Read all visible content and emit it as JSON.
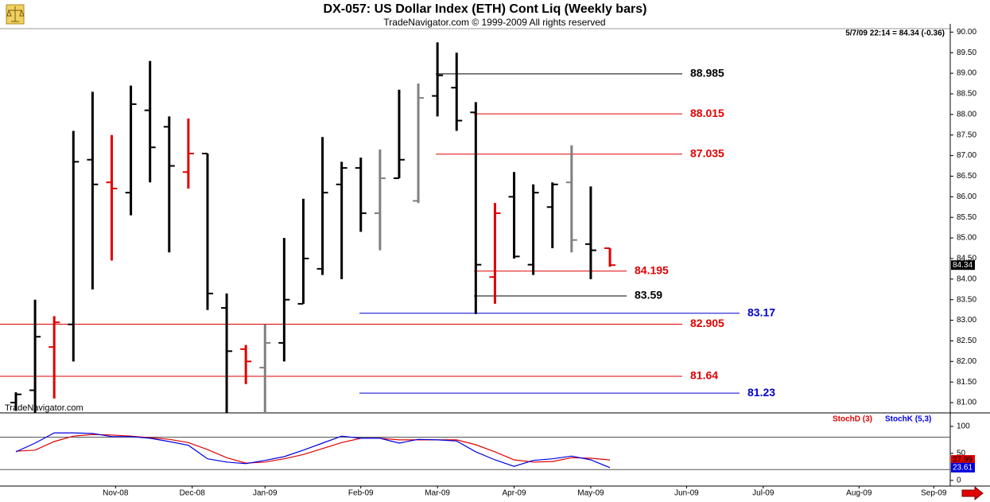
{
  "chart_data": [
    {
      "type": "ohlc",
      "title": "DX-057:  US Dollar Index (ETH) Cont Liq  (Weekly bars)",
      "subtitle": "TradeNavigator.com © 1999-2009 All rights reserved",
      "quote": "5/7/09 22:14 = 84.34 (-0.36)",
      "watermark": "TradeNavigator.com",
      "categories": [
        null,
        null,
        null,
        null,
        null,
        null,
        null,
        null,
        null,
        null,
        null,
        null,
        null,
        null,
        null,
        null,
        null,
        null,
        null,
        null,
        null,
        null,
        null,
        null,
        null,
        null,
        null,
        null,
        null,
        null,
        null,
        null
      ],
      "xlim": [
        -0.83,
        48.76
      ],
      "ylim": [
        80.75,
        90.2
      ],
      "yticks": [
        {
          "value": 81,
          "label": "81.00"
        },
        {
          "value": 81.5,
          "label": "81.50"
        },
        {
          "value": 82,
          "label": "82.00"
        },
        {
          "value": 82.5,
          "label": "82.50"
        },
        {
          "value": 83,
          "label": "83.00"
        },
        {
          "value": 83.5,
          "label": "83.50"
        },
        {
          "value": 84,
          "label": "84.00"
        },
        {
          "value": 84.5,
          "label": "84.50"
        },
        {
          "value": 85,
          "label": "85.00"
        },
        {
          "value": 85.5,
          "label": "85.50"
        },
        {
          "value": 86,
          "label": "86.00"
        },
        {
          "value": 86.5,
          "label": "86.50"
        },
        {
          "value": 87,
          "label": "87.00"
        },
        {
          "value": 87.5,
          "label": "87.50"
        },
        {
          "value": 88,
          "label": "88.00"
        },
        {
          "value": 88.5,
          "label": "88.50"
        },
        {
          "value": 89,
          "label": "89.00"
        },
        {
          "value": 89.5,
          "label": "89.50"
        },
        {
          "value": 90,
          "label": "90.00"
        }
      ],
      "open": [
        81.0,
        81.3,
        82.35,
        82.9,
        86.9,
        86.35,
        86.1,
        88.1,
        87.7,
        86.6,
        87.05,
        83.3,
        82.3,
        81.85,
        82.45,
        83.4,
        84.25,
        86.3,
        86.7,
        85.6,
        86.45,
        85.9,
        88.45,
        88.65,
        88.05,
        84.05,
        86.0,
        84.35,
        85.75,
        86.35,
        84.85,
        84.75
      ],
      "high": [
        81.25,
        83.5,
        83.1,
        87.6,
        88.55,
        87.5,
        88.7,
        89.3,
        87.95,
        87.9,
        87.05,
        83.65,
        82.4,
        82.9,
        85.0,
        85.95,
        87.45,
        86.85,
        86.95,
        87.15,
        88.6,
        88.75,
        89.75,
        89.5,
        88.3,
        85.85,
        86.6,
        86.3,
        86.35,
        87.25,
        86.25,
        84.75
      ],
      "low": [
        80.8,
        80.75,
        81.1,
        82.0,
        83.75,
        84.45,
        85.55,
        86.35,
        84.65,
        86.2,
        83.25,
        80.75,
        81.45,
        80.75,
        82.0,
        83.4,
        84.1,
        84.0,
        85.15,
        84.7,
        86.45,
        85.85,
        87.95,
        87.6,
        83.15,
        83.4,
        84.5,
        84.1,
        84.75,
        84.65,
        84.0,
        84.3
      ],
      "close": [
        81.2,
        82.6,
        82.95,
        86.85,
        86.3,
        86.2,
        88.25,
        87.2,
        86.75,
        87.05,
        83.65,
        82.25,
        82.0,
        82.45,
        83.5,
        84.5,
        86.1,
        86.7,
        85.6,
        86.45,
        86.9,
        88.4,
        88.95,
        87.85,
        84.35,
        85.6,
        84.55,
        86.1,
        86.3,
        84.95,
        84.7,
        84.34
      ],
      "colors": [
        "#000000",
        "#000000",
        "#e00000",
        "#000000",
        "#000000",
        "#e00000",
        "#000000",
        "#000000",
        "#000000",
        "#e00000",
        "#000000",
        "#000000",
        "#e00000",
        "#808080",
        "#000000",
        "#000000",
        "#000000",
        "#000000",
        "#000000",
        "#808080",
        "#000000",
        "#808080",
        "#000000",
        "#000000",
        "#000000",
        "#e00000",
        "#000000",
        "#000000",
        "#000000",
        "#808080",
        "#000000",
        "#e00000"
      ],
      "levels": [
        {
          "value": 88.985,
          "color": "#000000"
        },
        {
          "value": 88.015,
          "color": "#e00000"
        },
        {
          "value": 87.035,
          "color": "#e00000"
        },
        {
          "value": 84.195,
          "color": "#e00000"
        },
        {
          "value": 83.59,
          "color": "#000000"
        },
        {
          "value": 83.17,
          "color": "#0000cc"
        },
        {
          "value": 82.905,
          "color": "#e00000"
        },
        {
          "value": 81.64,
          "color": "#e00000"
        },
        {
          "value": 81.23,
          "color": "#0000cc"
        }
      ]
    },
    {
      "type": "line",
      "categories": [
        null,
        null,
        null,
        null,
        null,
        null,
        null,
        null,
        null,
        null,
        null,
        null,
        null,
        null,
        null,
        null,
        null,
        null,
        null,
        null,
        null,
        null,
        null,
        null,
        null,
        null,
        null,
        null,
        null,
        null,
        null,
        null
      ],
      "xlim": [
        -0.83,
        48.76
      ],
      "xticks": [
        {
          "value": 5.2,
          "label": "Nov-08"
        },
        {
          "value": 9.2,
          "label": "Dec-08"
        },
        {
          "value": 13,
          "label": "Jan-09"
        },
        {
          "value": 18,
          "label": "Feb-09"
        },
        {
          "value": 22,
          "label": "Mar-09"
        },
        {
          "value": 26,
          "label": "Apr-09"
        },
        {
          "value": 30,
          "label": "May-09"
        },
        {
          "value": 35,
          "label": "Jun-09"
        },
        {
          "value": 39,
          "label": "Jul-09"
        },
        {
          "value": 44,
          "label": "Aug-09"
        },
        {
          "value": 47.9,
          "label": "Sep-09"
        }
      ],
      "ylim": [
        -12,
        122
      ],
      "yticks": [
        0,
        50,
        100
      ],
      "hlines": [
        20,
        80
      ],
      "series": [
        {
          "name": "StochD (3)",
          "color": "#e00000",
          "values": [
            54,
            56,
            72,
            82,
            85,
            84,
            82,
            79,
            76,
            70,
            57,
            42,
            32,
            34,
            40,
            48,
            59,
            70,
            78,
            78,
            75,
            75,
            75,
            75,
            66,
            53,
            38,
            34,
            35,
            42,
            41,
            37.99
          ]
        },
        {
          "name": "StochK (5,3)",
          "color": "#0000e0",
          "values": [
            53,
            69,
            88,
            88,
            87,
            81,
            81,
            78,
            72,
            65,
            40,
            34,
            31,
            37,
            44,
            56,
            69,
            82,
            78,
            78,
            69,
            76,
            75,
            73,
            53,
            38,
            26,
            37,
            40,
            45,
            38,
            23.61
          ]
        }
      ]
    }
  ]
}
